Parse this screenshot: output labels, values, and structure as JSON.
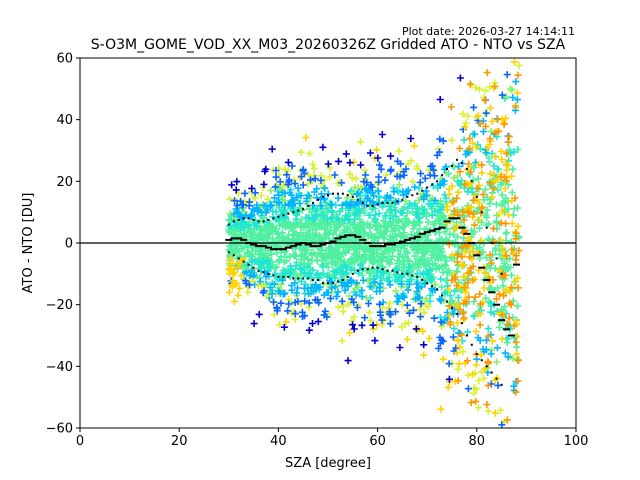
{
  "plot_date": "Plot date: 2026-03-27 14:14:11",
  "chart_data": {
    "type": "scatter",
    "title": "S-O3M_GOME_VOD_XX_M03_20260326Z Gridded ATO - NTO vs SZA",
    "xlabel": "SZA [degree]",
    "ylabel": "ATO - NTO [DU]",
    "xlim": [
      0,
      100
    ],
    "ylim": [
      -60,
      60
    ],
    "xticks": [
      0,
      20,
      40,
      60,
      80,
      100
    ],
    "yticks": [
      -60,
      -40,
      -20,
      0,
      20,
      40,
      60
    ],
    "grid": false,
    "legend": "none",
    "reference_line_y": 0,
    "point_colors": [
      "#0000cd",
      "#0a64ff",
      "#00b4ff",
      "#1ee6d2",
      "#50f0a0",
      "#8cf064",
      "#dcf032",
      "#ffd200",
      "#ff9600"
    ],
    "median_x": [
      30,
      31,
      32,
      33,
      34,
      35,
      36,
      37,
      38,
      39,
      40,
      41,
      42,
      43,
      44,
      45,
      46,
      47,
      48,
      49,
      50,
      51,
      52,
      53,
      54,
      55,
      56,
      57,
      58,
      59,
      60,
      61,
      62,
      63,
      64,
      65,
      66,
      67,
      68,
      69,
      70,
      71,
      72,
      73,
      74,
      75,
      76,
      77,
      78,
      79,
      80,
      81,
      82,
      83,
      84,
      85,
      86,
      87,
      88
    ],
    "median_y": [
      1,
      1.5,
      1.5,
      1,
      0,
      -0.5,
      -1,
      -1,
      -1.5,
      -2,
      -2,
      -2,
      -1.5,
      -1,
      -0.5,
      0,
      -0.5,
      -1,
      -1,
      -0.5,
      0,
      0.5,
      1.5,
      2,
      2.5,
      2.5,
      2,
      1,
      0,
      -1,
      -1,
      -1,
      -0.5,
      -0.5,
      0,
      0.5,
      1,
      1.5,
      2,
      3,
      3.5,
      4,
      4.5,
      5,
      7,
      8,
      8,
      5,
      3,
      0,
      -4,
      -8,
      -12,
      -16,
      -20,
      -25,
      -28,
      -30,
      -7
    ],
    "upper_x": [
      30,
      31,
      32,
      33,
      34,
      35,
      36,
      37,
      38,
      39,
      40,
      41,
      42,
      43,
      44,
      45,
      46,
      47,
      48,
      49,
      50,
      51,
      52,
      53,
      54,
      55,
      56,
      57,
      58,
      59,
      60,
      61,
      62,
      63,
      64,
      65,
      66,
      67,
      68,
      69,
      70,
      71,
      72,
      73,
      74,
      75,
      76,
      77,
      78,
      79,
      80,
      81,
      82,
      83,
      84,
      85
    ],
    "upper_y": [
      6,
      7,
      7.5,
      8,
      8,
      7.5,
      7,
      7,
      7.5,
      8,
      8.5,
      9,
      9.5,
      10,
      10.5,
      11,
      12,
      13,
      14,
      15,
      15.5,
      16,
      16,
      16,
      15.5,
      15,
      14,
      13,
      12,
      12,
      12.5,
      13,
      13,
      13,
      13.5,
      14,
      15,
      15.5,
      16,
      17,
      18,
      19,
      20,
      22,
      24,
      25,
      27,
      26,
      24,
      20,
      15,
      10,
      5,
      0,
      -5,
      -10
    ],
    "lower_x": [
      30,
      31,
      32,
      33,
      34,
      35,
      36,
      37,
      38,
      39,
      40,
      41,
      42,
      43,
      44,
      45,
      46,
      47,
      48,
      49,
      50,
      51,
      52,
      53,
      54,
      55,
      56,
      57,
      58,
      59,
      60,
      61,
      62,
      63,
      64,
      65,
      66,
      67,
      68,
      69,
      70,
      71,
      72,
      73,
      74,
      75,
      76,
      77,
      78,
      79,
      80,
      81,
      82,
      83,
      84,
      85
    ],
    "lower_y": [
      -3,
      -4,
      -5,
      -6,
      -7,
      -8,
      -9,
      -9.5,
      -10,
      -10.5,
      -11,
      -11,
      -11,
      -11.5,
      -11.5,
      -11.5,
      -11.5,
      -12,
      -12,
      -13,
      -13,
      -13,
      -12.5,
      -12,
      -11,
      -10,
      -9,
      -8.5,
      -8.5,
      -8,
      -8,
      -8.5,
      -9,
      -9,
      -9.5,
      -10,
      -10,
      -10.5,
      -11,
      -12,
      -13,
      -14,
      -15,
      -17,
      -19,
      -21,
      -23,
      -26,
      -30,
      -33,
      -36,
      -38,
      -40,
      -42,
      -44,
      -46
    ]
  }
}
